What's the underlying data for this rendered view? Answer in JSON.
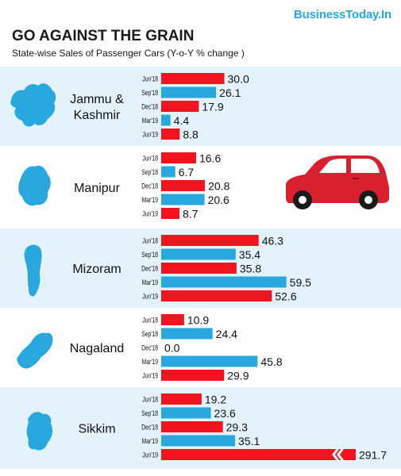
{
  "brand": "BusinessToday.In",
  "title": "GO AGAINST THE GRAIN",
  "subtitle": "State-wise Sales of Passenger Cars (Y-o-Y % change )",
  "colors": {
    "red": "#f0141e",
    "blue": "#29a8e0",
    "panel": "#e4f3fb",
    "map": "#29a8e0",
    "car": "#d8202e"
  },
  "icons": {
    "states": "state-map-icon",
    "decoration": "car-icon"
  },
  "chart_data": {
    "type": "bar",
    "periods": [
      "Jun'18",
      "Sep'18",
      "Dec'18",
      "Mar'19",
      "Jun'19"
    ],
    "value_labels": [
      "30.0",
      "26.1",
      "17.9",
      "4.4",
      "8.8",
      "16.6",
      "6.7",
      "20.8",
      "20.6",
      "8.7",
      "46.3",
      "35.4",
      "35.8",
      "59.5",
      "52.6",
      "10.9",
      "24.4",
      "0.0",
      "45.8",
      "29.9",
      "19.2",
      "23.6",
      "29.3",
      "35.1",
      "291.7"
    ],
    "groups": [
      {
        "state_lines": [
          "Jammu &",
          "Kashmir"
        ],
        "values": [
          30.0,
          26.1,
          17.9,
          4.4,
          8.8
        ]
      },
      {
        "state_lines": [
          "Manipur"
        ],
        "values": [
          16.6,
          6.7,
          20.8,
          20.6,
          8.7
        ]
      },
      {
        "state_lines": [
          "Mizoram"
        ],
        "values": [
          46.3,
          35.4,
          35.8,
          59.5,
          52.6
        ]
      },
      {
        "state_lines": [
          "Nagaland"
        ],
        "values": [
          10.9,
          24.4,
          0.0,
          45.8,
          29.9
        ]
      },
      {
        "state_lines": [
          "Sikkim"
        ],
        "values": [
          19.2,
          23.6,
          29.3,
          35.1,
          291.7
        ]
      }
    ],
    "bar_colors": [
      "red",
      "blue",
      "red",
      "blue",
      "red"
    ],
    "axis_break": "Sikkim Jun'19 bar is broken (291.7)"
  }
}
